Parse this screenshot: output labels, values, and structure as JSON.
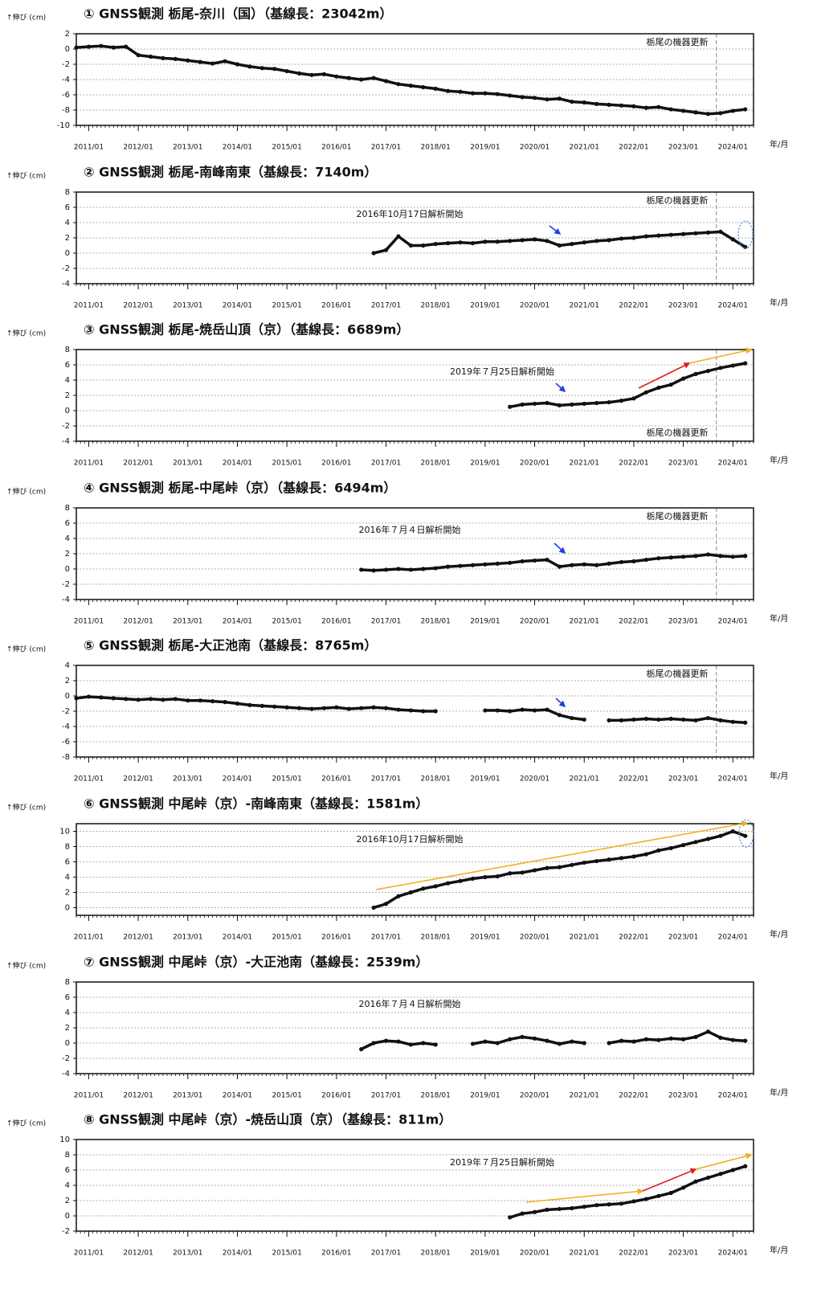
{
  "chart_data": [
    {
      "type": "scatter",
      "title": "① GNSS観測 栃尾-奈川（国）（基線長：23042m）",
      "y_label": "↑伸び (cm)",
      "x_label": "年/月",
      "grid": true,
      "color": "#111111",
      "x": [
        "2010/10",
        "2011/01",
        "2011/04",
        "2011/07",
        "2011/10",
        "2012/01",
        "2012/04",
        "2012/07",
        "2012/10",
        "2013/01",
        "2013/04",
        "2013/07",
        "2013/10",
        "2014/01",
        "2014/04",
        "2014/07",
        "2014/10",
        "2015/01",
        "2015/04",
        "2015/07",
        "2015/10",
        "2016/01",
        "2016/04",
        "2016/07",
        "2016/10",
        "2017/01",
        "2017/04",
        "2017/07",
        "2017/10",
        "2018/01",
        "2018/04",
        "2018/07",
        "2018/10",
        "2019/01",
        "2019/04",
        "2019/07",
        "2019/10",
        "2020/01",
        "2020/04",
        "2020/07",
        "2020/10",
        "2021/01",
        "2021/04",
        "2021/07",
        "2021/10",
        "2022/01",
        "2022/04",
        "2022/07",
        "2022/10",
        "2023/01",
        "2023/04",
        "2023/07",
        "2023/10",
        "2024/01",
        "2024/04"
      ],
      "values": [
        0.2,
        0.3,
        0.4,
        0.2,
        0.3,
        -0.8,
        -1.0,
        -1.2,
        -1.3,
        -1.5,
        -1.7,
        -1.9,
        -1.6,
        -2.0,
        -2.3,
        -2.5,
        -2.6,
        -2.9,
        -3.2,
        -3.4,
        -3.3,
        -3.6,
        -3.8,
        -4.0,
        -3.8,
        -4.2,
        -4.6,
        -4.8,
        -5.0,
        -5.2,
        -5.5,
        -5.6,
        -5.8,
        -5.8,
        -5.9,
        -6.1,
        -6.3,
        -6.4,
        -6.6,
        -6.5,
        -6.9,
        -7.0,
        -7.2,
        -7.3,
        -7.4,
        -7.5,
        -7.7,
        -7.6,
        -7.9,
        -8.1,
        -8.3,
        -8.5,
        -8.4,
        -8.1,
        -7.9
      ],
      "xlim": [
        "2010/10",
        "2024/06"
      ],
      "ylim": [
        -10,
        2
      ],
      "yticks": [
        -10,
        -8,
        -6,
        -4,
        -2,
        0,
        2
      ],
      "xticks": [
        "2011/01",
        "2012/01",
        "2013/01",
        "2014/01",
        "2015/01",
        "2016/01",
        "2017/01",
        "2018/01",
        "2019/01",
        "2020/01",
        "2021/01",
        "2022/01",
        "2023/01",
        "2024/01"
      ],
      "equipment_update": {
        "x": "2023/09",
        "label": "栃尾の機器更新",
        "position": "top"
      }
    },
    {
      "type": "scatter",
      "title": "② GNSS観測 栃尾-南峰南東（基線長：7140m）",
      "y_label": "↑伸び (cm)",
      "x_label": "年/月",
      "grid": true,
      "color": "#111111",
      "x": [
        "2016/10",
        "2017/01",
        "2017/04",
        "2017/07",
        "2017/10",
        "2018/01",
        "2018/04",
        "2018/07",
        "2018/10",
        "2019/01",
        "2019/04",
        "2019/07",
        "2019/10",
        "2020/01",
        "2020/04",
        "2020/07",
        "2020/10",
        "2021/01",
        "2021/04",
        "2021/07",
        "2021/10",
        "2022/01",
        "2022/04",
        "2022/07",
        "2022/10",
        "2023/01",
        "2023/04",
        "2023/07",
        "2023/10",
        "2024/01",
        "2024/04"
      ],
      "values": [
        0.0,
        0.4,
        2.2,
        1.0,
        1.0,
        1.2,
        1.3,
        1.4,
        1.3,
        1.5,
        1.5,
        1.6,
        1.7,
        1.8,
        1.6,
        1.0,
        1.2,
        1.4,
        1.6,
        1.7,
        1.9,
        2.0,
        2.2,
        2.3,
        2.4,
        2.5,
        2.6,
        2.7,
        2.8,
        1.8,
        0.8
      ],
      "xlim": [
        "2010/10",
        "2024/06"
      ],
      "ylim": [
        -4,
        8
      ],
      "yticks": [
        -4,
        -2,
        0,
        2,
        4,
        6,
        8
      ],
      "xticks": [
        "2011/01",
        "2012/01",
        "2013/01",
        "2014/01",
        "2015/01",
        "2016/01",
        "2017/01",
        "2018/01",
        "2019/01",
        "2020/01",
        "2021/01",
        "2022/01",
        "2023/01",
        "2024/01"
      ],
      "annotation": "2016年10月17日解析開始",
      "equipment_update": {
        "x": "2023/09",
        "label": "栃尾の機器更新",
        "position": "top"
      }
    },
    {
      "type": "scatter",
      "title": "③ GNSS観測 栃尾-焼岳山頂（京）（基線長：6689m）",
      "y_label": "↑伸び (cm)",
      "x_label": "年/月",
      "grid": true,
      "color": "#111111",
      "x": [
        "2019/07",
        "2019/10",
        "2020/01",
        "2020/04",
        "2020/07",
        "2020/10",
        "2021/01",
        "2021/04",
        "2021/07",
        "2021/10",
        "2022/01",
        "2022/04",
        "2022/07",
        "2022/10",
        "2023/01",
        "2023/04",
        "2023/07",
        "2023/10",
        "2024/01",
        "2024/04"
      ],
      "values": [
        0.5,
        0.8,
        0.9,
        1.0,
        0.7,
        0.8,
        0.9,
        1.0,
        1.1,
        1.3,
        1.6,
        2.4,
        3.0,
        3.4,
        4.2,
        4.8,
        5.2,
        5.6,
        5.9,
        6.2
      ],
      "xlim": [
        "2010/10",
        "2024/06"
      ],
      "ylim": [
        -4,
        8
      ],
      "yticks": [
        -4,
        -2,
        0,
        2,
        4,
        6,
        8
      ],
      "xticks": [
        "2011/01",
        "2012/01",
        "2013/01",
        "2014/01",
        "2015/01",
        "2016/01",
        "2017/01",
        "2018/01",
        "2019/01",
        "2020/01",
        "2021/01",
        "2022/01",
        "2023/01",
        "2024/01"
      ],
      "annotation": "2019年７月25日解析開始",
      "equipment_update": {
        "x": "2023/09",
        "label": "栃尾の機器更新",
        "position": "bottom"
      }
    },
    {
      "type": "scatter",
      "title": "④ GNSS観測 栃尾-中尾峠（京）（基線長：6494m）",
      "y_label": "↑伸び (cm)",
      "x_label": "年/月",
      "grid": true,
      "color": "#111111",
      "x": [
        "2016/07",
        "2016/10",
        "2017/01",
        "2017/04",
        "2017/07",
        "2017/10",
        "2018/01",
        "2018/04",
        "2018/07",
        "2018/10",
        "2019/01",
        "2019/04",
        "2019/07",
        "2019/10",
        "2020/01",
        "2020/04",
        "2020/07",
        "2020/10",
        "2021/01",
        "2021/04",
        "2021/07",
        "2021/10",
        "2022/01",
        "2022/04",
        "2022/07",
        "2022/10",
        "2023/01",
        "2023/04",
        "2023/07",
        "2023/10",
        "2024/01",
        "2024/04"
      ],
      "values": [
        -0.1,
        -0.2,
        -0.1,
        0.0,
        -0.1,
        0.0,
        0.1,
        0.3,
        0.4,
        0.5,
        0.6,
        0.7,
        0.8,
        1.0,
        1.1,
        1.2,
        0.3,
        0.5,
        0.6,
        0.5,
        0.7,
        0.9,
        1.0,
        1.2,
        1.4,
        1.5,
        1.6,
        1.7,
        1.9,
        1.7,
        1.6,
        1.7
      ],
      "xlim": [
        "2010/10",
        "2024/06"
      ],
      "ylim": [
        -4,
        8
      ],
      "yticks": [
        -4,
        -2,
        0,
        2,
        4,
        6,
        8
      ],
      "xticks": [
        "2011/01",
        "2012/01",
        "2013/01",
        "2014/01",
        "2015/01",
        "2016/01",
        "2017/01",
        "2018/01",
        "2019/01",
        "2020/01",
        "2021/01",
        "2022/01",
        "2023/01",
        "2024/01"
      ],
      "annotation": "2016年７月４日解析開始",
      "equipment_update": {
        "x": "2023/09",
        "label": "栃尾の機器更新",
        "position": "top"
      }
    },
    {
      "type": "scatter",
      "title": "⑤ GNSS観測 栃尾-大正池南（基線長：8765m）",
      "y_label": "↑伸び (cm)",
      "x_label": "年/月",
      "grid": true,
      "color": "#111111",
      "x": [
        "2010/10",
        "2011/01",
        "2011/04",
        "2011/07",
        "2011/10",
        "2012/01",
        "2012/04",
        "2012/07",
        "2012/10",
        "2013/01",
        "2013/04",
        "2013/07",
        "2013/10",
        "2014/01",
        "2014/04",
        "2014/07",
        "2014/10",
        "2015/01",
        "2015/04",
        "2015/07",
        "2015/10",
        "2016/01",
        "2016/04",
        "2016/07",
        "2016/10",
        "2017/01",
        "2017/04",
        "2017/07",
        "2017/10",
        "2018/01",
        "2018/04",
        "2018/07",
        "2018/10",
        "2019/01",
        "2019/04",
        "2019/07",
        "2019/10",
        "2020/01",
        "2020/04",
        "2020/07",
        "2020/10",
        "2021/01",
        "2021/04",
        "2021/07",
        "2021/10",
        "2022/01",
        "2022/04",
        "2022/07",
        "2022/10",
        "2023/01",
        "2023/04",
        "2023/07",
        "2023/10",
        "2024/01",
        "2024/04"
      ],
      "values": [
        -0.3,
        -0.1,
        -0.2,
        -0.3,
        -0.4,
        -0.5,
        -0.4,
        -0.5,
        -0.4,
        -0.6,
        -0.6,
        -0.7,
        -0.8,
        -1.0,
        -1.2,
        -1.3,
        -1.4,
        -1.5,
        -1.6,
        -1.7,
        -1.6,
        -1.5,
        -1.7,
        -1.6,
        -1.5,
        -1.6,
        -1.8,
        -1.9,
        -2.0,
        -2.0,
        null,
        null,
        null,
        -1.9,
        -1.9,
        -2.0,
        -1.8,
        -1.9,
        -1.8,
        -2.5,
        -2.9,
        -3.1,
        null,
        -3.2,
        -3.2,
        -3.1,
        -3.0,
        -3.1,
        -3.0,
        -3.1,
        -3.2,
        -2.9,
        -3.2,
        -3.4,
        -3.5
      ],
      "xlim": [
        "2010/10",
        "2024/06"
      ],
      "ylim": [
        -8,
        4
      ],
      "yticks": [
        -8,
        -6,
        -4,
        -2,
        0,
        2,
        4
      ],
      "xticks": [
        "2011/01",
        "2012/01",
        "2013/01",
        "2014/01",
        "2015/01",
        "2016/01",
        "2017/01",
        "2018/01",
        "2019/01",
        "2020/01",
        "2021/01",
        "2022/01",
        "2023/01",
        "2024/01"
      ],
      "equipment_update": {
        "x": "2023/09",
        "label": "栃尾の機器更新",
        "position": "top"
      }
    },
    {
      "type": "scatter",
      "title": "⑥ GNSS観測 中尾峠（京）-南峰南東（基線長：1581m）",
      "y_label": "↑伸び (cm)",
      "x_label": "年/月",
      "grid": true,
      "color": "#111111",
      "x": [
        "2016/10",
        "2017/01",
        "2017/04",
        "2017/07",
        "2017/10",
        "2018/01",
        "2018/04",
        "2018/07",
        "2018/10",
        "2019/01",
        "2019/04",
        "2019/07",
        "2019/10",
        "2020/01",
        "2020/04",
        "2020/07",
        "2020/10",
        "2021/01",
        "2021/04",
        "2021/07",
        "2021/10",
        "2022/01",
        "2022/04",
        "2022/07",
        "2022/10",
        "2023/01",
        "2023/04",
        "2023/07",
        "2023/10",
        "2024/01",
        "2024/04"
      ],
      "values": [
        0.0,
        0.5,
        1.5,
        2.0,
        2.5,
        2.8,
        3.2,
        3.5,
        3.8,
        4.0,
        4.1,
        4.5,
        4.6,
        4.9,
        5.2,
        5.3,
        5.6,
        5.9,
        6.1,
        6.3,
        6.5,
        6.7,
        7.0,
        7.5,
        7.8,
        8.2,
        8.6,
        9.0,
        9.4,
        10.0,
        9.4
      ],
      "xlim": [
        "2010/10",
        "2024/06"
      ],
      "ylim": [
        -1,
        11
      ],
      "yticks": [
        0,
        2,
        4,
        6,
        8,
        10
      ],
      "xticks": [
        "2011/01",
        "2012/01",
        "2013/01",
        "2014/01",
        "2015/01",
        "2016/01",
        "2017/01",
        "2018/01",
        "2019/01",
        "2020/01",
        "2021/01",
        "2022/01",
        "2023/01",
        "2024/01"
      ],
      "annotation": "2016年10月17日解析開始"
    },
    {
      "type": "scatter",
      "title": "⑦ GNSS観測 中尾峠（京）-大正池南（基線長：2539m）",
      "y_label": "↑伸び (cm)",
      "x_label": "年/月",
      "grid": true,
      "color": "#111111",
      "x": [
        "2016/07",
        "2016/10",
        "2017/01",
        "2017/04",
        "2017/07",
        "2017/10",
        "2018/01",
        "2018/04",
        "2018/07",
        "2018/10",
        "2019/01",
        "2019/04",
        "2019/07",
        "2019/10",
        "2020/01",
        "2020/04",
        "2020/07",
        "2020/10",
        "2021/01",
        "2021/04",
        "2021/07",
        "2021/10",
        "2022/01",
        "2022/04",
        "2022/07",
        "2022/10",
        "2023/01",
        "2023/04",
        "2023/07",
        "2023/10",
        "2024/01",
        "2024/04"
      ],
      "values": [
        -0.8,
        0.0,
        0.3,
        0.2,
        -0.2,
        0.0,
        -0.2,
        null,
        null,
        -0.1,
        0.2,
        0.0,
        0.5,
        0.8,
        0.6,
        0.3,
        -0.1,
        0.2,
        0.0,
        null,
        0.0,
        0.3,
        0.2,
        0.5,
        0.4,
        0.6,
        0.5,
        0.8,
        1.5,
        0.7,
        0.4,
        0.3
      ],
      "xlim": [
        "2010/10",
        "2024/06"
      ],
      "ylim": [
        -4,
        8
      ],
      "yticks": [
        -4,
        -2,
        0,
        2,
        4,
        6,
        8
      ],
      "xticks": [
        "2011/01",
        "2012/01",
        "2013/01",
        "2014/01",
        "2015/01",
        "2016/01",
        "2017/01",
        "2018/01",
        "2019/01",
        "2020/01",
        "2021/01",
        "2022/01",
        "2023/01",
        "2024/01"
      ],
      "annotation": "2016年７月４日解析開始"
    },
    {
      "type": "scatter",
      "title": "⑧ GNSS観測 中尾峠（京）-焼岳山頂（京）（基線長：811m）",
      "y_label": "↑伸び (cm)",
      "x_label": "年/月",
      "grid": true,
      "color": "#111111",
      "x": [
        "2019/07",
        "2019/10",
        "2020/01",
        "2020/04",
        "2020/07",
        "2020/10",
        "2021/01",
        "2021/04",
        "2021/07",
        "2021/10",
        "2022/01",
        "2022/04",
        "2022/07",
        "2022/10",
        "2023/01",
        "2023/04",
        "2023/07",
        "2023/10",
        "2024/01",
        "2024/04"
      ],
      "values": [
        -0.2,
        0.3,
        0.5,
        0.8,
        0.9,
        1.0,
        1.2,
        1.4,
        1.5,
        1.6,
        1.9,
        2.2,
        2.6,
        3.0,
        3.7,
        4.5,
        5.0,
        5.5,
        6.0,
        6.5
      ],
      "xlim": [
        "2010/10",
        "2024/06"
      ],
      "ylim": [
        -2,
        10
      ],
      "yticks": [
        -2,
        0,
        2,
        4,
        6,
        8,
        10
      ],
      "xticks": [
        "2011/01",
        "2012/01",
        "2013/01",
        "2014/01",
        "2015/01",
        "2016/01",
        "2017/01",
        "2018/01",
        "2019/01",
        "2020/01",
        "2021/01",
        "2022/01",
        "2023/01",
        "2024/01"
      ],
      "annotation": "2019年７月25日解析開始"
    }
  ]
}
